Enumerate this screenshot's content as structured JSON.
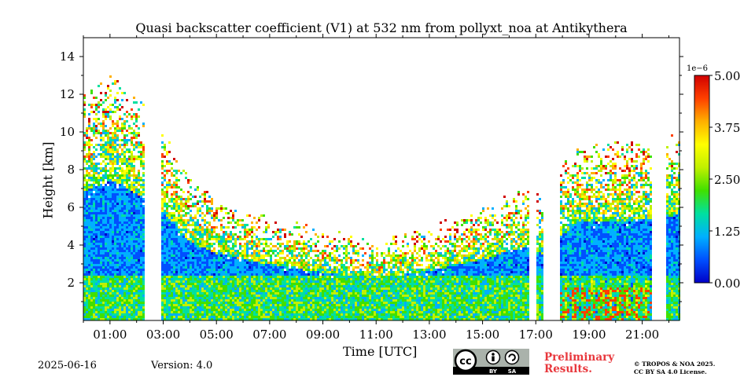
{
  "footer": {
    "date": "2025-06-16",
    "version": "Version: 4.0",
    "preliminary_line1": "Preliminary",
    "preliminary_line2": "Results.",
    "copyright_line1": "© TROPOS & NOA 2025.",
    "copyright_line2": "CC BY SA 4.0 License.",
    "license_badge_by": "BY",
    "license_badge_sa": "SA",
    "license_badge_cc": "cc"
  },
  "colors": {
    "preliminary": "#e8383d",
    "colormap": [
      "#0000c8",
      "#0050ff",
      "#00b0ff",
      "#00e0a0",
      "#40e000",
      "#c0f000",
      "#ffff00",
      "#ffb000",
      "#ff4000",
      "#d00000"
    ]
  },
  "chart_data": {
    "type": "heatmap",
    "title": "Quasi backscatter coefficient (V1) at 532 nm from pollyxt_noa at Antikythera",
    "xlabel": "Time [UTC]",
    "ylabel": "Height [km]",
    "xlim_hours": [
      0.0,
      22.4
    ],
    "ylim": [
      0,
      15
    ],
    "x_tick_labels": [
      "01:00",
      "03:00",
      "05:00",
      "07:00",
      "09:00",
      "11:00",
      "13:00",
      "15:00",
      "17:00",
      "19:00",
      "21:00"
    ],
    "x_tick_hours": [
      1,
      3,
      5,
      7,
      9,
      11,
      13,
      15,
      17,
      19,
      21
    ],
    "y_ticks": [
      2,
      4,
      6,
      8,
      10,
      12,
      14
    ],
    "colorbar": {
      "range": [
        0.0,
        5.0
      ],
      "ticks": [
        "0.00",
        "1.25",
        "2.50",
        "3.75",
        "5.00"
      ],
      "exponent_label": "1e−6"
    },
    "data_gaps_hours": [
      [
        2.3,
        2.9
      ],
      [
        16.7,
        16.95
      ],
      [
        17.25,
        17.85
      ],
      [
        21.35,
        21.85
      ]
    ],
    "signal_top_km": [
      {
        "t": 0.0,
        "h": 11.5
      },
      {
        "t": 1.0,
        "h": 12.5
      },
      {
        "t": 2.2,
        "h": 11.0
      },
      {
        "t": 3.0,
        "h": 9.5
      },
      {
        "t": 4.0,
        "h": 7.0
      },
      {
        "t": 5.0,
        "h": 6.0
      },
      {
        "t": 7.0,
        "h": 5.0
      },
      {
        "t": 9.0,
        "h": 4.3
      },
      {
        "t": 11.0,
        "h": 3.8
      },
      {
        "t": 13.0,
        "h": 4.5
      },
      {
        "t": 15.0,
        "h": 5.5
      },
      {
        "t": 16.7,
        "h": 6.7
      },
      {
        "t": 17.2,
        "h": 6.0
      },
      {
        "t": 18.5,
        "h": 8.8
      },
      {
        "t": 21.3,
        "h": 9.0
      },
      {
        "t": 22.4,
        "h": 9.5
      }
    ]
  }
}
